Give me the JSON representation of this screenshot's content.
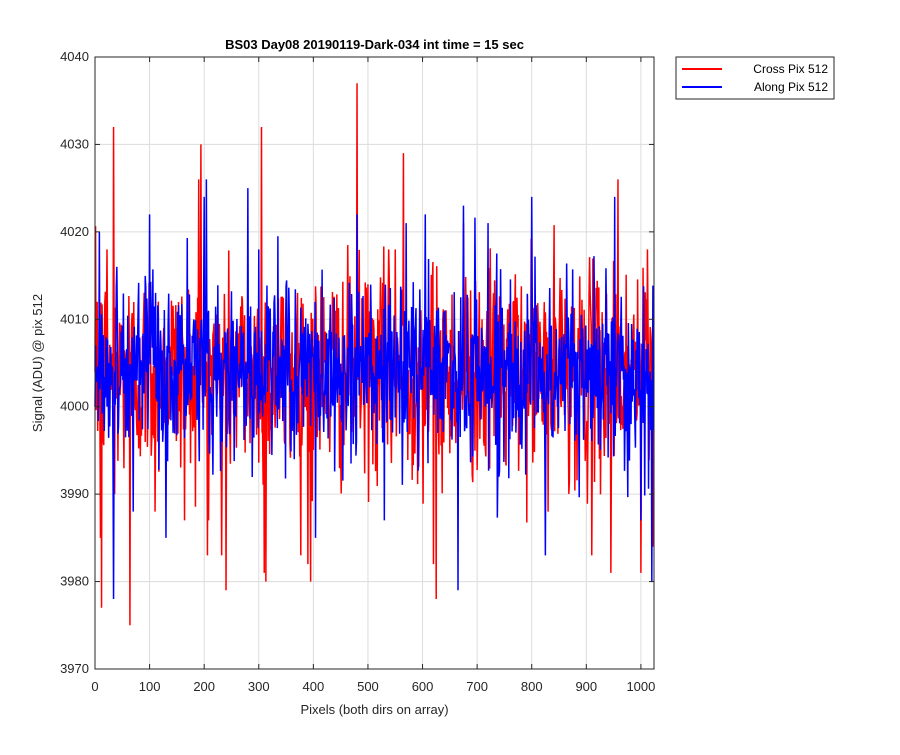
{
  "chart_data": {
    "type": "line",
    "title": "BS03 Day08 20190119-Dark-034 int time = 15 sec",
    "xlabel": "Pixels (both dirs on array)",
    "ylabel": "Signal (ADU) @ pix 512",
    "xlim": [
      0,
      1024
    ],
    "ylim": [
      3970,
      4040
    ],
    "xticks": [
      0,
      100,
      200,
      300,
      400,
      500,
      600,
      700,
      800,
      900,
      1000
    ],
    "yticks": [
      3970,
      3980,
      3990,
      4000,
      4010,
      4020,
      4030,
      4040
    ],
    "grid": true,
    "legend_position": "outside top-right",
    "colors": {
      "cross": "#ff0000",
      "along": "#0000ff",
      "grid": "#dcdcdc",
      "axes": "#262626"
    },
    "series": [
      {
        "name": "Cross Pix 512",
        "color": "#ff0000",
        "sample_points": [
          [
            0,
            4004
          ],
          [
            4,
            4012
          ],
          [
            10,
            3985
          ],
          [
            12,
            3977
          ],
          [
            22,
            4018
          ],
          [
            34,
            4032
          ],
          [
            36,
            3990
          ],
          [
            64,
            3975
          ],
          [
            110,
            3988
          ],
          [
            164,
            3987
          ],
          [
            190,
            4026
          ],
          [
            194,
            4030
          ],
          [
            208,
            3987
          ],
          [
            232,
            3983
          ],
          [
            240,
            3979
          ],
          [
            305,
            4032
          ],
          [
            310,
            3981
          ],
          [
            313,
            3980
          ],
          [
            390,
            3982
          ],
          [
            395,
            3980
          ],
          [
            480,
            4037
          ],
          [
            550,
            4018
          ],
          [
            565,
            4029
          ],
          [
            620,
            3982
          ],
          [
            625,
            3978
          ],
          [
            675,
            4021
          ],
          [
            830,
            3988
          ],
          [
            910,
            3983
          ],
          [
            945,
            3981
          ],
          [
            958,
            4026
          ],
          [
            1000,
            3981
          ],
          [
            1012,
            4018
          ],
          [
            1022,
            3984
          ]
        ],
        "mean": 4004,
        "std": 6
      },
      {
        "name": "Along Pix 512",
        "color": "#0000ff",
        "sample_points": [
          [
            0,
            4000
          ],
          [
            8,
            4020
          ],
          [
            14,
            4004
          ],
          [
            34,
            3978
          ],
          [
            40,
            4016
          ],
          [
            70,
            3988
          ],
          [
            100,
            4022
          ],
          [
            130,
            3985
          ],
          [
            200,
            4024
          ],
          [
            204,
            4026
          ],
          [
            280,
            4025
          ],
          [
            300,
            4018
          ],
          [
            404,
            3985
          ],
          [
            480,
            4022
          ],
          [
            530,
            3987
          ],
          [
            570,
            4021
          ],
          [
            605,
            4022
          ],
          [
            665,
            3979
          ],
          [
            675,
            4023
          ],
          [
            720,
            4021
          ],
          [
            740,
            3992
          ],
          [
            800,
            4024
          ],
          [
            825,
            3983
          ],
          [
            870,
            3998
          ],
          [
            952,
            4024
          ],
          [
            1000,
            3987
          ],
          [
            1020,
            3980
          ]
        ],
        "mean": 4004,
        "std": 5
      }
    ]
  }
}
